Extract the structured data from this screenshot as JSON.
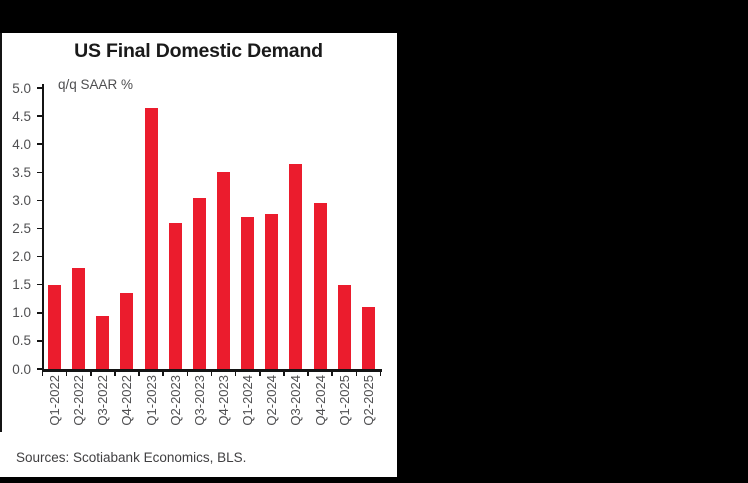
{
  "colors": {
    "background": "#000000",
    "panel": "#FFFFFF",
    "bar": "#EB1C2D",
    "axis": "#141414",
    "title_text": "#1A1A1A",
    "tick_text": "#4F4F51",
    "source_text": "#414042"
  },
  "chart_data": {
    "type": "bar",
    "title": "US Final Domestic Demand",
    "axis_label": "q/q SAAR %",
    "categories": [
      "Q1-2022",
      "Q2-2022",
      "Q3-2022",
      "Q4-2022",
      "Q1-2023",
      "Q2-2023",
      "Q3-2023",
      "Q4-2023",
      "Q1-2024",
      "Q2-2024",
      "Q3-2024",
      "Q4-2024",
      "Q1-2025",
      "Q2-2025"
    ],
    "values": [
      1.5,
      1.8,
      0.95,
      1.35,
      4.65,
      2.6,
      3.05,
      3.5,
      2.7,
      2.75,
      3.65,
      2.95,
      1.5,
      1.1
    ],
    "ylim": [
      0,
      5
    ],
    "y_ticks": [
      0,
      0.5,
      1,
      1.5,
      2,
      2.5,
      3,
      3.5,
      4,
      4.5,
      5
    ],
    "y_tick_labels": [
      "0.0",
      "0.5",
      "1.0",
      "1.5",
      "2.0",
      "2.5",
      "3.0",
      "3.5",
      "4.0",
      "4.5",
      "5.0"
    ],
    "grid": false,
    "legend": "none",
    "xlabel": "",
    "ylabel": ""
  },
  "footer": {
    "sources": "Sources: Scotiabank Economics, BLS."
  }
}
